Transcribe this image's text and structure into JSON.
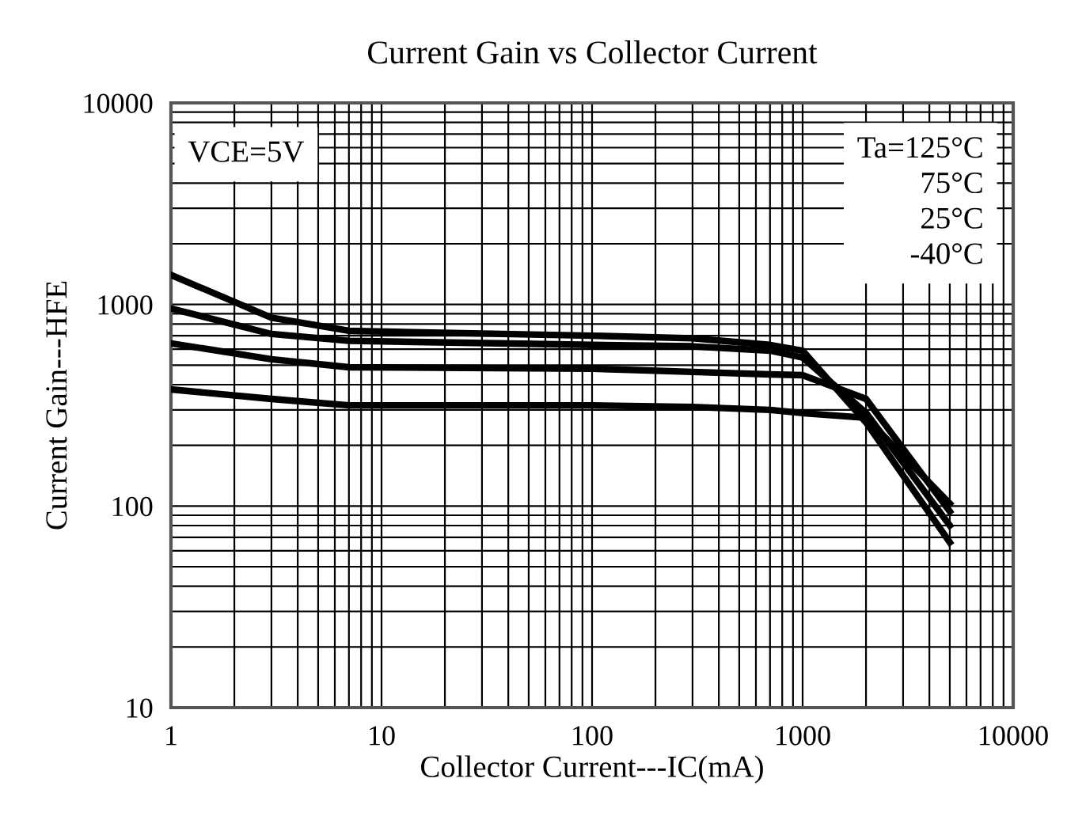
{
  "chart_data": {
    "type": "line",
    "title": "Current Gain vs Collector Current",
    "xlabel": "Collector Current---IC(mA)",
    "ylabel": "Current Gain---HFE",
    "annotations": [
      "VCE=5V",
      "Ta=125°C",
      "75°C",
      "25°C",
      "-40°C"
    ],
    "log": "xy",
    "xlim": [
      1,
      10000
    ],
    "ylim": [
      10,
      10000
    ],
    "xticks": [
      1,
      10,
      100,
      1000,
      10000
    ],
    "yticks": [
      10,
      100,
      1000,
      10000
    ],
    "grid": true,
    "legend": false,
    "marker": "none",
    "line_style": "solid",
    "x": [
      1,
      3,
      7,
      100,
      300,
      700,
      1000,
      2000,
      5000
    ],
    "series": [
      {
        "color": "#000000",
        "values": [
          1400,
          860,
          740,
          700,
          680,
          630,
          590,
          260,
          66
        ]
      },
      {
        "color": "#000000",
        "values": [
          955,
          714,
          660,
          630,
          620,
          590,
          545,
          290,
          80
        ]
      },
      {
        "color": "#000000",
        "values": [
          641,
          535,
          488,
          480,
          463,
          450,
          446,
          340,
          94
        ]
      },
      {
        "color": "#000000",
        "values": [
          379,
          340,
          316,
          316,
          310,
          300,
          289,
          274,
          103
        ]
      }
    ]
  }
}
